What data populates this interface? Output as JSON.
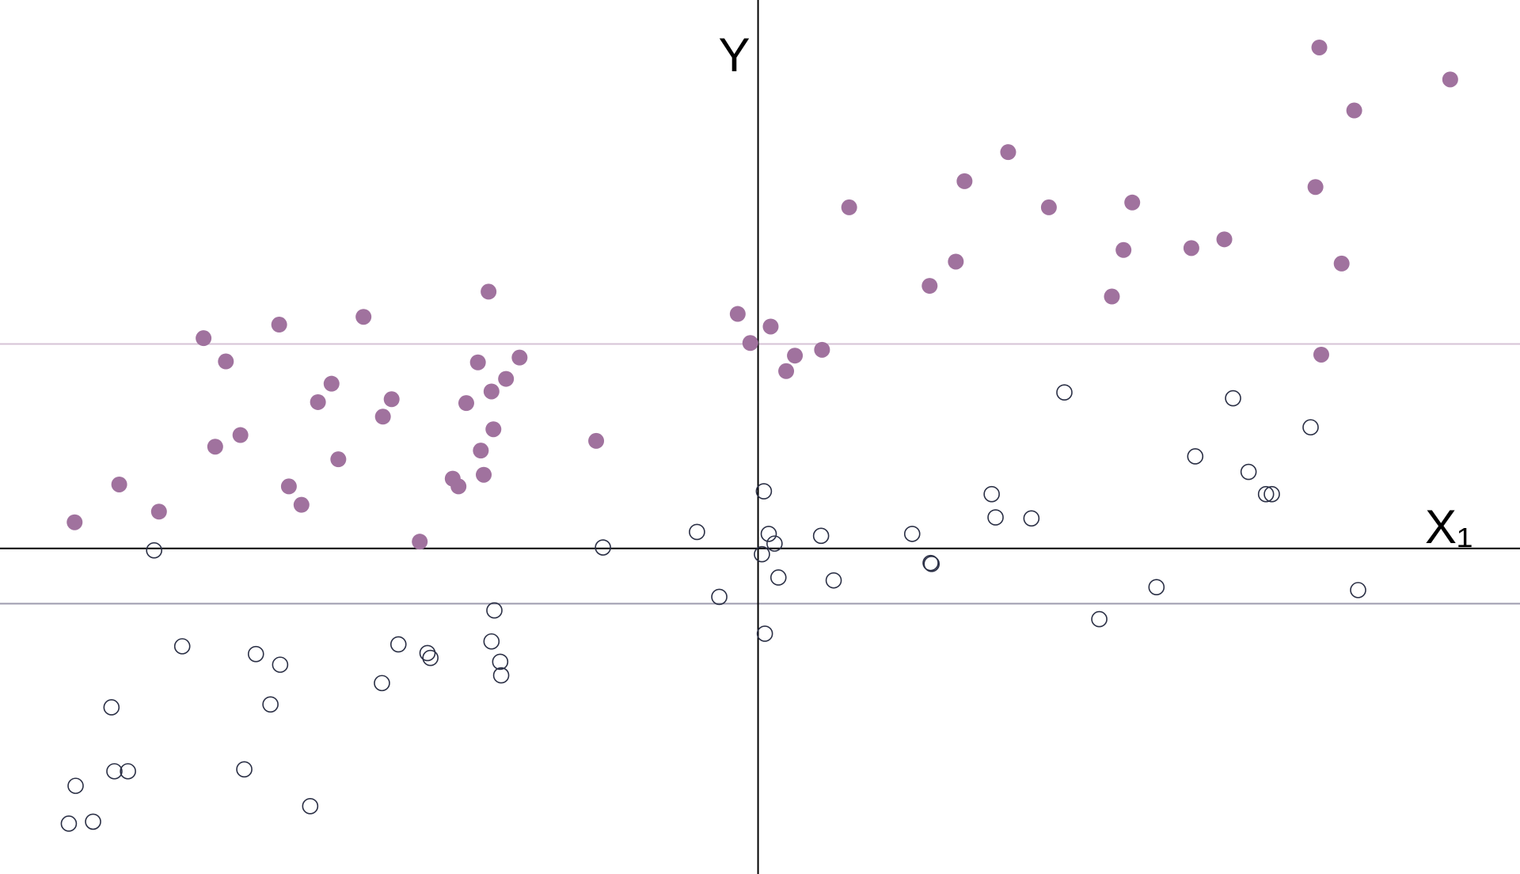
{
  "chart_data": {
    "type": "scatter",
    "xlabel": "X₁",
    "ylabel": "Y",
    "xlim": [
      -7.82,
      7.86
    ],
    "ylim": [
      -3.36,
      5.66
    ],
    "hlines": [
      {
        "value": 2.11,
        "color": "#d6c3d6"
      },
      {
        "value": -0.57,
        "color": "#9d9bae"
      }
    ],
    "series": [
      {
        "color": "#a0729e",
        "filled": true,
        "x": [
          5.79,
          7.14,
          6.15,
          2.58,
          2.13,
          5.75,
          0.94,
          3.0,
          3.86,
          4.81,
          4.47,
          3.77,
          2.04,
          6.02,
          1.77,
          3.65,
          5.81,
          -0.21,
          0.13,
          -0.08,
          0.66,
          0.38,
          0.29,
          -2.78,
          -4.07,
          -4.94,
          -5.72,
          -5.49,
          -2.46,
          -2.89,
          -2.6,
          -4.4,
          -2.75,
          -3.78,
          -4.54,
          -3.01,
          -3.87,
          -2.73,
          -5.34,
          -1.67,
          -5.6,
          -2.86,
          -4.33,
          -2.83,
          -3.15,
          -6.59,
          -4.84,
          -3.09,
          -4.71,
          -6.18,
          -7.05,
          -3.49
        ],
        "values": [
          5.17,
          4.84,
          4.52,
          4.09,
          3.79,
          3.73,
          3.52,
          3.52,
          3.57,
          3.19,
          3.1,
          3.08,
          2.96,
          2.94,
          2.71,
          2.6,
          2.0,
          2.42,
          2.29,
          2.12,
          2.05,
          1.99,
          1.83,
          2.65,
          2.39,
          2.31,
          2.17,
          1.93,
          1.97,
          1.92,
          1.75,
          1.7,
          1.62,
          1.54,
          1.51,
          1.5,
          1.36,
          1.23,
          1.17,
          1.11,
          1.05,
          1.01,
          0.92,
          0.76,
          0.72,
          0.66,
          0.64,
          0.64,
          0.45,
          0.38,
          0.27,
          0.07
        ]
      },
      {
        "color": "#2a2f45",
        "filled": false,
        "x": [
          3.16,
          4.9,
          5.7,
          4.51,
          5.06,
          5.24,
          5.3,
          2.41,
          2.45,
          2.82,
          0.06,
          -0.63,
          0.11,
          0.65,
          1.59,
          0.17,
          0.04,
          -1.6,
          -6.23,
          1.78,
          1.79,
          0.21,
          0.78,
          4.11,
          6.19,
          -0.4,
          -2.72,
          3.52,
          0.07,
          -2.75,
          -5.94,
          -3.71,
          -5.18,
          -3.41,
          -3.38,
          -4.93,
          -2.66,
          -2.65,
          -3.88,
          -5.03,
          -6.67,
          -5.3,
          -6.64,
          -6.5,
          -7.04,
          -4.62,
          -7.11,
          -6.86
        ],
        "values": [
          1.61,
          1.55,
          1.25,
          0.95,
          0.79,
          0.56,
          0.56,
          0.56,
          0.32,
          0.31,
          0.59,
          0.17,
          0.15,
          0.13,
          0.15,
          0.05,
          -0.06,
          0.01,
          -0.02,
          -0.15,
          -0.16,
          -0.3,
          -0.33,
          -0.4,
          -0.43,
          -0.5,
          -0.64,
          -0.73,
          -0.88,
          -0.96,
          -1.01,
          -0.99,
          -1.09,
          -1.08,
          -1.13,
          -1.2,
          -1.17,
          -1.31,
          -1.39,
          -1.61,
          -1.64,
          -2.28,
          -2.3,
          -2.3,
          -2.45,
          -2.66,
          -2.84,
          -2.82
        ]
      }
    ]
  }
}
